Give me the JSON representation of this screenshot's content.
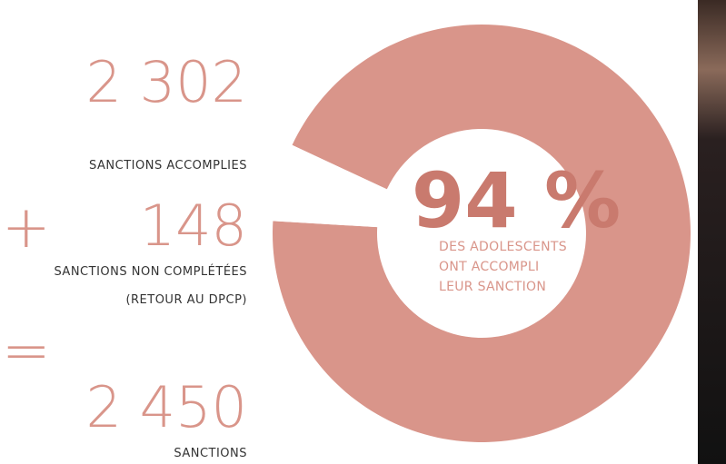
{
  "chart_data": {
    "type": "donut",
    "categories": [
      "DES ADOLESCENTS ONT ACCOMPLI LEUR SANCTION",
      null
    ],
    "values": [
      94,
      6
    ],
    "value_labels": [
      "94 %",
      null
    ],
    "colors": [
      "#d9958a",
      "#ffffff"
    ],
    "caption": [
      "DES ADOLESCENTS",
      "ONT ACCOMPLI",
      "LEUR SANCTION"
    ]
  },
  "stats": [
    {
      "value": "2 302",
      "label": [
        "SANCTIONS ACCOMPLIES"
      ]
    },
    {
      "operator": "+",
      "value": "148",
      "label": [
        "SANCTIONS NON COMPLÉTÉES",
        "(RETOUR AU DPCP)"
      ]
    },
    {
      "operator": "=",
      "value": "2 450",
      "label": [
        "SANCTIONS"
      ]
    }
  ]
}
